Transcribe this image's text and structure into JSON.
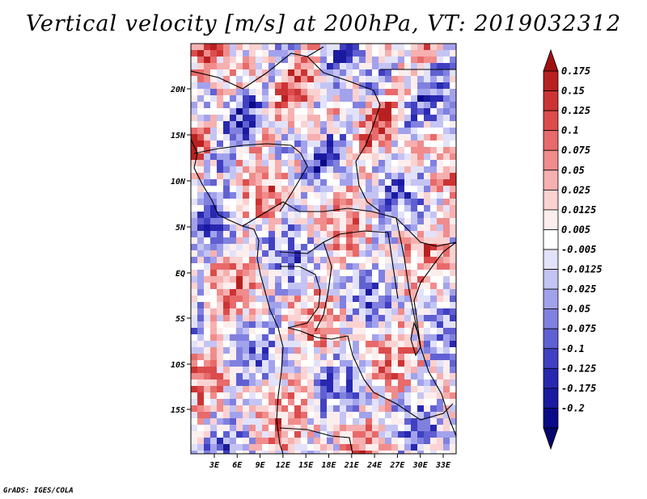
{
  "title": "Vertical velocity [m/s] at 200hPa, VT: 2019032312",
  "credit": "GrADS: IGES/COLA",
  "map": {
    "lat_labels": [
      "20N",
      "15N",
      "10N",
      "5N",
      "EQ",
      "5S",
      "10S",
      "15S"
    ],
    "lon_labels": [
      "3E",
      "6E",
      "9E",
      "12E",
      "15E",
      "18E",
      "21E",
      "24E",
      "27E",
      "30E",
      "33E"
    ]
  },
  "colorbar": {
    "labels": [
      "0.175",
      "0.15",
      "0.125",
      "0.1",
      "0.075",
      "0.05",
      "0.025",
      "0.0125",
      "0.005",
      "-0.005",
      "-0.0125",
      "-0.025",
      "-0.05",
      "-0.075",
      "-0.1",
      "-0.125",
      "-0.175",
      "-0.2"
    ],
    "colors": [
      "#a01010",
      "#b82020",
      "#cc3434",
      "#dc4c4c",
      "#e86a6a",
      "#f08c8c",
      "#f6b0b0",
      "#fad2d2",
      "#fdeeee",
      "#ffffff",
      "#e2e2fa",
      "#c4c4f4",
      "#a2a2ec",
      "#8080e0",
      "#6060d2",
      "#4040c2",
      "#2828b0",
      "#1a1aa0",
      "#0a0a88",
      "#06066c"
    ]
  }
}
